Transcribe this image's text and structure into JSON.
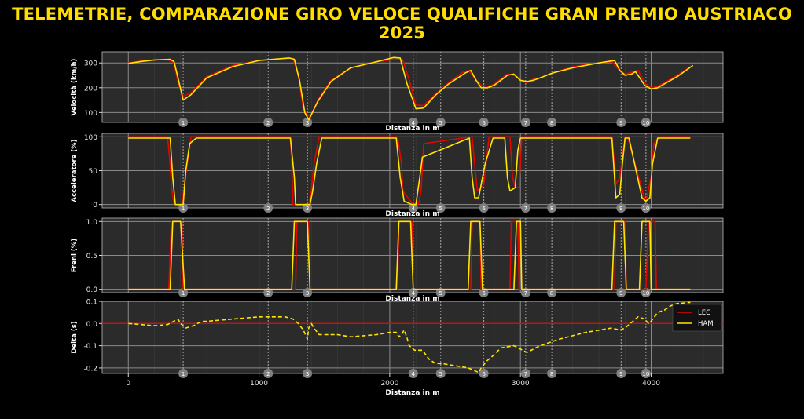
{
  "title": "TELEMETRIE, COMPARAZIONE GIRO VELOCE QUALIFICHE GRAN PREMIO AUSTRIACO 2025",
  "colors": {
    "background": "#000000",
    "panel": "#2b2b2b",
    "title": "#ffdd00",
    "lec": "#e10600",
    "ham": "#ffe600",
    "corner_marker": "#7f7f7f"
  },
  "corners": [
    {
      "label": "1",
      "distance": 420
    },
    {
      "label": "2",
      "distance": 1070
    },
    {
      "label": "3",
      "distance": 1370
    },
    {
      "label": "4",
      "distance": 2180
    },
    {
      "label": "5",
      "distance": 2390
    },
    {
      "label": "6",
      "distance": 2720
    },
    {
      "label": "7",
      "distance": 3040
    },
    {
      "label": "8",
      "distance": 3240
    },
    {
      "label": "9",
      "distance": 3770
    },
    {
      "label": "10",
      "distance": 3960
    }
  ],
  "chart_data": [
    {
      "type": "line",
      "ylabel": "Velocità (km/h)",
      "xlabel": "Distanza in m",
      "xlim": [
        -200,
        4550
      ],
      "ylim": [
        60,
        345
      ],
      "yticks": [
        100,
        200,
        300
      ],
      "grid": true,
      "series": [
        {
          "name": "LEC",
          "x": [
            0,
            100,
            200,
            300,
            350,
            380,
            420,
            480,
            600,
            800,
            1000,
            1200,
            1260,
            1300,
            1340,
            1390,
            1450,
            1550,
            1700,
            1900,
            2050,
            2100,
            2150,
            2200,
            2260,
            2350,
            2450,
            2550,
            2600,
            2650,
            2700,
            2750,
            2800,
            2850,
            2900,
            2950,
            3000,
            3050,
            3100,
            3150,
            3250,
            3400,
            3600,
            3700,
            3750,
            3800,
            3850,
            3900,
            3950,
            4000,
            4050,
            4200,
            4300
          ],
          "values": [
            300,
            308,
            312,
            314,
            300,
            220,
            165,
            180,
            245,
            290,
            310,
            318,
            318,
            250,
            110,
            80,
            150,
            230,
            280,
            305,
            315,
            312,
            230,
            130,
            128,
            175,
            220,
            260,
            270,
            240,
            210,
            205,
            215,
            235,
            255,
            250,
            230,
            220,
            235,
            240,
            260,
            285,
            300,
            305,
            275,
            255,
            262,
            270,
            220,
            200,
            205,
            250,
            285
          ]
        },
        {
          "name": "HAM",
          "x": [
            0,
            100,
            200,
            320,
            350,
            380,
            420,
            480,
            600,
            800,
            1000,
            1230,
            1270,
            1310,
            1350,
            1380,
            1450,
            1550,
            1700,
            1900,
            2030,
            2080,
            2130,
            2200,
            2260,
            2350,
            2450,
            2580,
            2620,
            2660,
            2700,
            2750,
            2800,
            2850,
            2900,
            2950,
            3000,
            3050,
            3100,
            3150,
            3250,
            3400,
            3600,
            3720,
            3760,
            3800,
            3850,
            3880,
            3950,
            4000,
            4050,
            4200,
            4320
          ],
          "values": [
            298,
            306,
            312,
            315,
            305,
            240,
            150,
            172,
            240,
            285,
            310,
            320,
            315,
            230,
            100,
            70,
            145,
            225,
            280,
            305,
            322,
            320,
            220,
            115,
            118,
            170,
            215,
            260,
            270,
            230,
            200,
            200,
            210,
            230,
            250,
            255,
            230,
            225,
            230,
            240,
            260,
            280,
            300,
            310,
            270,
            250,
            255,
            265,
            210,
            195,
            200,
            245,
            290
          ]
        }
      ]
    },
    {
      "type": "line",
      "ylabel": "Acceleratore (%)",
      "xlabel": "Distanza in m",
      "xlim": [
        -200,
        4550
      ],
      "ylim": [
        -5,
        105
      ],
      "yticks": [
        0,
        50,
        100
      ],
      "grid": true,
      "series": [
        {
          "name": "LEC",
          "x": [
            0,
            300,
            320,
            330,
            350,
            410,
            440,
            480,
            560,
            1240,
            1250,
            1260,
            1380,
            1400,
            1420,
            1460,
            2060,
            2090,
            2100,
            2180,
            2220,
            2240,
            2260,
            2630,
            2650,
            2670,
            2700,
            2720,
            2760,
            2820,
            2920,
            2940,
            2960,
            2990,
            3010,
            3060,
            3100,
            3150,
            3700,
            3720,
            3730,
            3760,
            3800,
            3820,
            3940,
            3960,
            4000,
            4020,
            4060,
            4300
          ],
          "values": [
            100,
            100,
            60,
            25,
            0,
            0,
            45,
            100,
            100,
            100,
            60,
            0,
            0,
            20,
            60,
            100,
            100,
            60,
            20,
            0,
            0,
            20,
            90,
            100,
            60,
            20,
            25,
            30,
            100,
            100,
            100,
            40,
            25,
            25,
            100,
            100,
            100,
            100,
            100,
            60,
            30,
            40,
            100,
            100,
            15,
            5,
            40,
            90,
            100,
            100
          ]
        },
        {
          "name": "HAM",
          "x": [
            0,
            320,
            340,
            360,
            420,
            440,
            470,
            520,
            1240,
            1270,
            1280,
            1390,
            1410,
            1440,
            1480,
            2050,
            2080,
            2110,
            2170,
            2200,
            2230,
            2250,
            2610,
            2630,
            2650,
            2680,
            2700,
            2730,
            2790,
            2880,
            2900,
            2920,
            2960,
            2980,
            3000,
            3050,
            3150,
            3700,
            3730,
            3760,
            3780,
            3800,
            3830,
            3930,
            3960,
            3990,
            4010,
            4050,
            4300
          ],
          "values": [
            98,
            98,
            40,
            0,
            0,
            50,
            90,
            98,
            98,
            40,
            0,
            0,
            20,
            60,
            98,
            98,
            40,
            5,
            0,
            0,
            40,
            70,
            98,
            40,
            10,
            10,
            30,
            60,
            98,
            98,
            40,
            20,
            25,
            80,
            98,
            98,
            98,
            98,
            10,
            15,
            60,
            98,
            98,
            10,
            5,
            10,
            60,
            98,
            98
          ]
        }
      ]
    },
    {
      "type": "line",
      "ylabel": "Freni (%)",
      "xlabel": "Distanza in m",
      "xlim": [
        -200,
        4550
      ],
      "ylim": [
        -0.05,
        1.05
      ],
      "yticks": [
        0.0,
        0.5,
        1.0
      ],
      "grid": true,
      "series": [
        {
          "name": "LEC",
          "x": [
            0,
            310,
            330,
            410,
            420,
            1280,
            1290,
            1380,
            1390,
            2060,
            2070,
            2170,
            2180,
            2620,
            2630,
            2690,
            2700,
            2920,
            2930,
            2940,
            2950,
            2980,
            2990,
            3720,
            3730,
            3800,
            3810,
            3960,
            3980,
            4030,
            4040,
            4300
          ],
          "values": [
            0,
            0,
            1,
            1,
            0,
            0,
            1,
            1,
            0,
            0,
            1,
            1,
            0,
            0,
            1,
            1,
            0,
            0,
            1,
            1,
            1,
            1,
            0,
            0,
            1,
            1,
            0,
            0,
            1,
            1,
            0,
            0
          ]
        },
        {
          "name": "HAM",
          "x": [
            0,
            320,
            340,
            400,
            430,
            1250,
            1270,
            1370,
            1390,
            2050,
            2070,
            2160,
            2180,
            2600,
            2620,
            2690,
            2710,
            2950,
            2970,
            3000,
            3010,
            3700,
            3720,
            3790,
            3810,
            3910,
            3930,
            3990,
            4000,
            4300
          ],
          "values": [
            0,
            0,
            1,
            1,
            0,
            0,
            1,
            1,
            0,
            0,
            1,
            1,
            0,
            0,
            1,
            1,
            0,
            0,
            1,
            1,
            0,
            0,
            1,
            1,
            0,
            0,
            1,
            1,
            0,
            0
          ]
        }
      ]
    },
    {
      "type": "line",
      "ylabel": "Delta (s)",
      "xlabel": "Distanza in m",
      "xlim": [
        -200,
        4550
      ],
      "ylim": [
        -0.225,
        0.1
      ],
      "yticks": [
        0.1,
        0.0,
        -0.1,
        -0.2
      ],
      "xticks": [
        0,
        1000,
        2000,
        3000,
        4000
      ],
      "grid": true,
      "legend_position": "right",
      "series": [
        {
          "name": "LEC",
          "x": [
            -200,
            4550
          ],
          "values": [
            0,
            0
          ]
        },
        {
          "name": "HAM",
          "x": [
            0,
            100,
            200,
            300,
            380,
            400,
            440,
            500,
            560,
            600,
            800,
            1000,
            1100,
            1200,
            1260,
            1300,
            1340,
            1370,
            1380,
            1400,
            1420,
            1460,
            1500,
            1600,
            1700,
            1800,
            1900,
            2000,
            2050,
            2070,
            2090,
            2110,
            2130,
            2150,
            2170,
            2190,
            2250,
            2300,
            2350,
            2400,
            2500,
            2600,
            2680,
            2700,
            2740,
            2800,
            2850,
            2950,
            3050,
            3150,
            3300,
            3500,
            3700,
            3760,
            3800,
            3860,
            3900,
            3950,
            3980,
            4000,
            4050,
            4100,
            4150,
            4200,
            4300
          ],
          "values": [
            0,
            -0.005,
            -0.01,
            -0.005,
            0.02,
            0.0,
            -0.02,
            -0.01,
            0.01,
            0.01,
            0.02,
            0.03,
            0.03,
            0.03,
            0.02,
            0.0,
            -0.03,
            -0.07,
            -0.02,
            0.0,
            -0.02,
            -0.05,
            -0.05,
            -0.05,
            -0.06,
            -0.055,
            -0.05,
            -0.04,
            -0.04,
            -0.06,
            -0.05,
            -0.03,
            -0.06,
            -0.1,
            -0.11,
            -0.12,
            -0.12,
            -0.16,
            -0.18,
            -0.18,
            -0.19,
            -0.2,
            -0.22,
            -0.2,
            -0.17,
            -0.14,
            -0.11,
            -0.1,
            -0.13,
            -0.1,
            -0.07,
            -0.04,
            -0.02,
            -0.03,
            -0.02,
            0.01,
            0.03,
            0.02,
            0.0,
            0.01,
            0.05,
            0.06,
            0.08,
            0.09,
            0.095
          ]
        }
      ]
    }
  ]
}
